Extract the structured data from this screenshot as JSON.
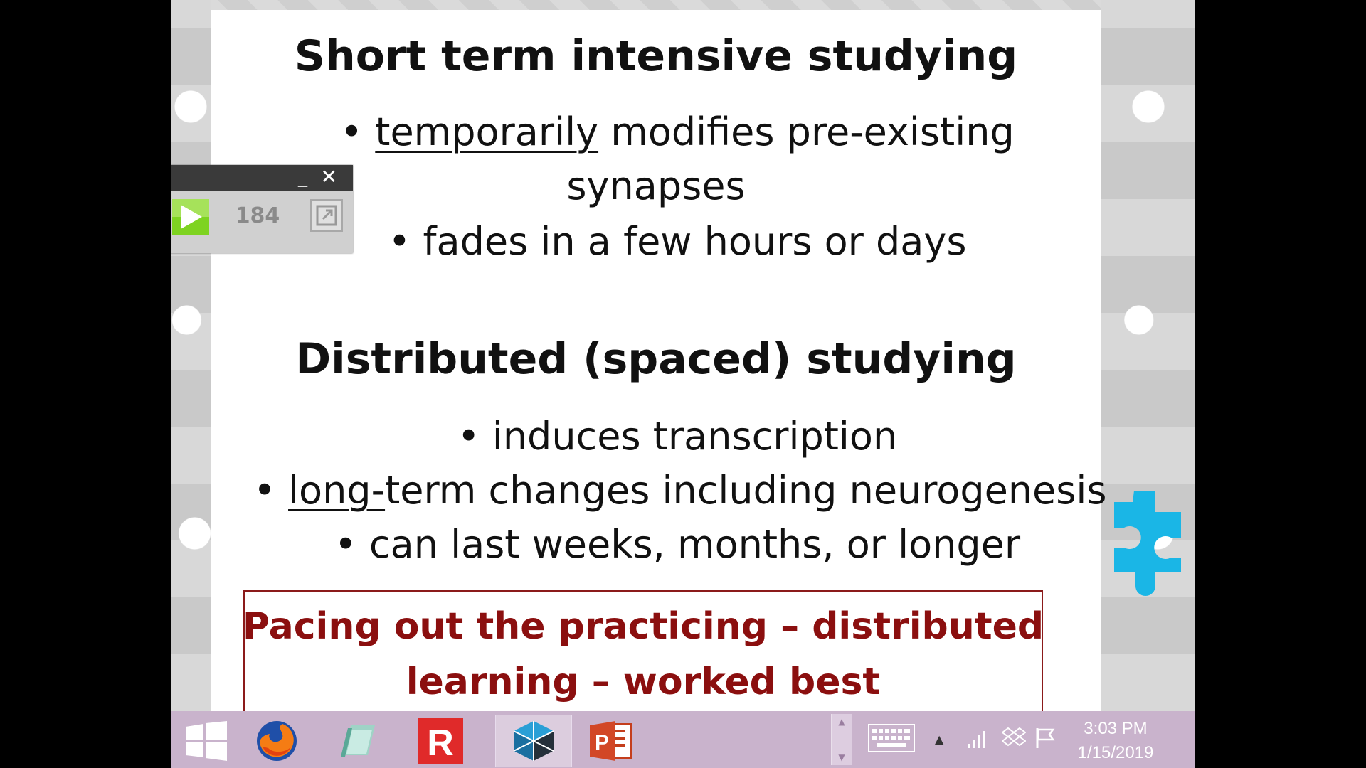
{
  "slide": {
    "heading_1": "Short term intensive studying",
    "bullets_1": [
      {
        "underlined": "temporarily",
        "rest": " modifies pre-existing"
      },
      {
        "text": "synapses"
      },
      {
        "text": "• fades in a few hours or days"
      }
    ],
    "heading_2": "Distributed (spaced) studying",
    "bullets_2": [
      {
        "text": "• induces transcription"
      },
      {
        "underlined": "long-",
        "rest": "term changes including neurogenesis"
      },
      {
        "text": "• can last weeks, months, or longer"
      }
    ],
    "bullet_glyph": "• ",
    "callout": {
      "line_1": "Pacing out the practicing – distributed",
      "line_2": "learning – worked best"
    }
  },
  "mini_panel": {
    "minimize_label": "_",
    "close_label": "✕",
    "counter": "184"
  },
  "taskbar": {
    "apps": [
      {
        "name": "windows-start",
        "icon": "windows-logo-icon"
      },
      {
        "name": "firefox",
        "icon": "firefox-icon"
      },
      {
        "name": "file-explorer",
        "icon": "files-icon"
      },
      {
        "name": "r-app",
        "icon": "r-app-icon",
        "letter": "R"
      },
      {
        "name": "blocks-app",
        "icon": "cube-icon"
      },
      {
        "name": "powerpoint",
        "icon": "powerpoint-icon",
        "letter": "P"
      }
    ],
    "clock": {
      "time": "3:03 PM",
      "date": "1/15/2019"
    }
  },
  "colors": {
    "callout_text": "#8b0f0f",
    "callout_border": "#8b1a1a",
    "taskbar": "#c9b3cc",
    "puzzle_blue": "#1ab6e6"
  }
}
